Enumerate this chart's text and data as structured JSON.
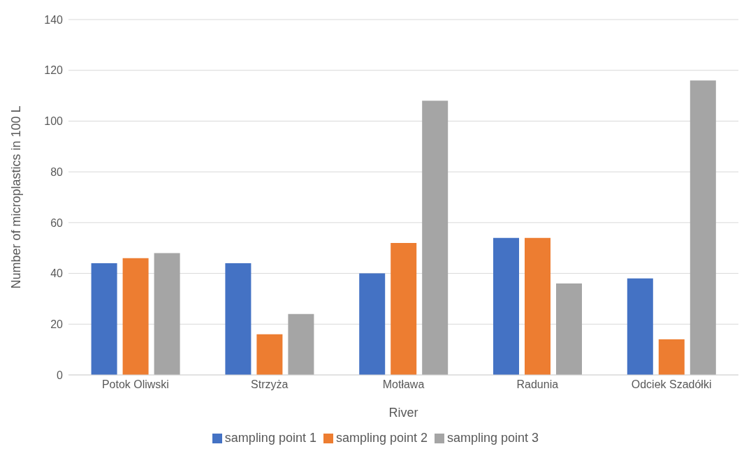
{
  "chart_data": {
    "type": "bar",
    "xlabel": "River",
    "ylabel": "Number of microplastics in 100 L",
    "categories": [
      "Potok Oliwski",
      "Strzyża",
      "Motława",
      "Radunia",
      "Odciek Szadółki"
    ],
    "series": [
      {
        "name": "sampling point 1",
        "color": "#4472c4",
        "values": [
          44,
          44,
          40,
          54,
          38
        ]
      },
      {
        "name": "sampling point 2",
        "color": "#ed7d31",
        "values": [
          46,
          16,
          52,
          54,
          14
        ]
      },
      {
        "name": "sampling point 3",
        "color": "#a5a5a5",
        "values": [
          48,
          24,
          108,
          36,
          116
        ]
      }
    ],
    "ylim": [
      0,
      140
    ],
    "yticks": [
      0,
      20,
      40,
      60,
      80,
      100,
      120,
      140
    ],
    "grid": "y",
    "legend": "bottom"
  }
}
